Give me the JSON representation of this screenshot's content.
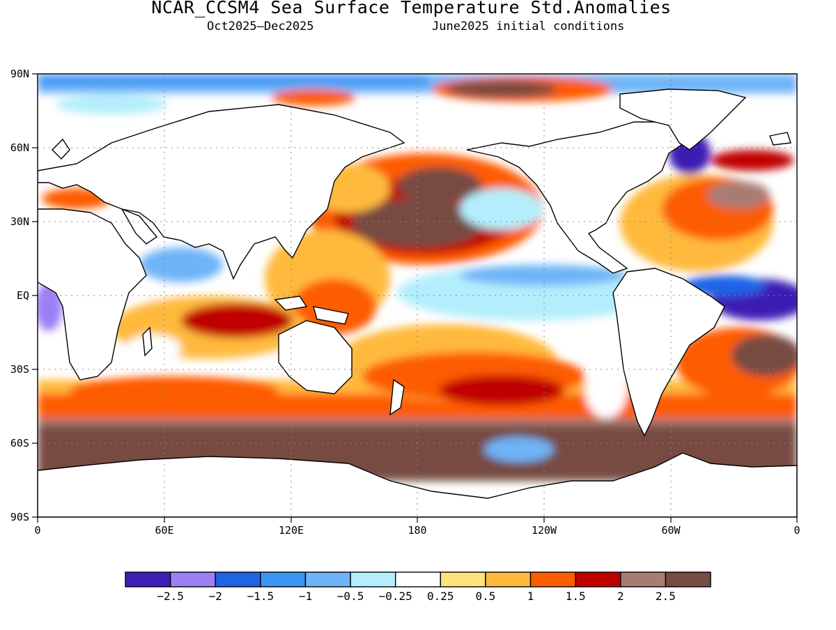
{
  "title": "NCAR_CCSM4 Sea Surface Temperature Std.Anomalies",
  "subtitle_left": "Oct2025–Dec2025",
  "subtitle_right": "June2025 initial conditions",
  "lat_labels": [
    "90N",
    "60N",
    "30N",
    "EQ",
    "30S",
    "60S",
    "90S"
  ],
  "lon_labels": [
    "0",
    "60E",
    "120E",
    "180",
    "120W",
    "60W",
    "0"
  ],
  "colorbar": {
    "colors": [
      "#3c1fb4",
      "#9b7ff5",
      "#1f63e6",
      "#3a95f5",
      "#6eb4f8",
      "#b4eefc",
      "#ffffff",
      "#fee27a",
      "#ffba3c",
      "#fe5c00",
      "#c00000",
      "#a97c73",
      "#774c42"
    ],
    "tick_labels": [
      "−2.5",
      "−2",
      "−1.5",
      "−1",
      "−0.5",
      "−0.25",
      "0.25",
      "0.5",
      "1",
      "1.5",
      "2",
      "2.5"
    ]
  },
  "map": {
    "projection": "cylindrical-equidistant",
    "lon_range": [
      0,
      360
    ],
    "lat_range": [
      -90,
      90
    ],
    "land_color": "#ffffff",
    "grid": "dotted"
  }
}
